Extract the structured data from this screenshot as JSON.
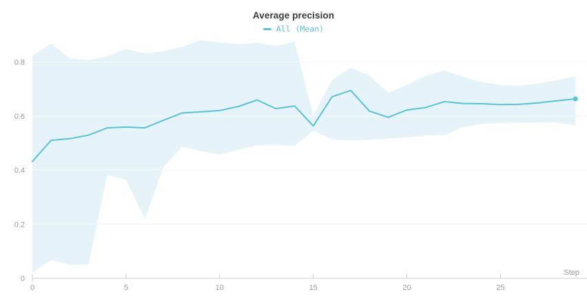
{
  "header": {
    "title": "Average precision"
  },
  "legend": {
    "items": [
      {
        "label": "All (Mean)",
        "color": "#57c2d9"
      }
    ]
  },
  "chart_data": {
    "type": "line",
    "title": "Average precision",
    "xlabel": "Step",
    "ylabel": "",
    "x": [
      0,
      1,
      2,
      3,
      4,
      5,
      6,
      7,
      8,
      9,
      10,
      11,
      12,
      13,
      14,
      15,
      16,
      17,
      18,
      19,
      20,
      21,
      22,
      23,
      24,
      25,
      26,
      27,
      28,
      29
    ],
    "series": [
      {
        "name": "All (Mean)",
        "values": [
          0.432,
          0.51,
          0.516,
          0.529,
          0.556,
          0.559,
          0.556,
          0.584,
          0.611,
          0.615,
          0.62,
          0.635,
          0.659,
          0.627,
          0.637,
          0.563,
          0.671,
          0.694,
          0.618,
          0.595,
          0.622,
          0.631,
          0.653,
          0.646,
          0.645,
          0.642,
          0.643,
          0.648,
          0.656,
          0.663
        ],
        "color": "#57c2d9",
        "endpoint_marker": true
      }
    ],
    "band": {
      "name": "All (Min/Max band)",
      "upper": [
        0.822,
        0.868,
        0.812,
        0.806,
        0.821,
        0.848,
        0.831,
        0.839,
        0.856,
        0.88,
        0.872,
        0.865,
        0.87,
        0.859,
        0.874,
        0.601,
        0.732,
        0.779,
        0.749,
        0.686,
        0.715,
        0.749,
        0.768,
        0.745,
        0.724,
        0.715,
        0.711,
        0.72,
        0.732,
        0.747
      ],
      "lower": [
        0.021,
        0.068,
        0.05,
        0.051,
        0.383,
        0.364,
        0.22,
        0.411,
        0.487,
        0.47,
        0.457,
        0.475,
        0.491,
        0.493,
        0.489,
        0.546,
        0.512,
        0.51,
        0.512,
        0.516,
        0.521,
        0.528,
        0.529,
        0.559,
        0.571,
        0.574,
        0.575,
        0.575,
        0.576,
        0.566
      ],
      "color": "#e6f3f8"
    },
    "x_ticks": [
      "0",
      "5",
      "10",
      "15",
      "20",
      "25"
    ],
    "x_tick_values": [
      0,
      5,
      10,
      15,
      20,
      25
    ],
    "y_ticks": [
      "0",
      "0.2",
      "0.4",
      "0.6",
      "0.8"
    ],
    "y_tick_values": [
      0,
      0.2,
      0.4,
      0.6,
      0.8
    ],
    "xlim": [
      0,
      29.6
    ],
    "ylim": [
      0,
      0.89
    ],
    "grid": "horizontal",
    "legend_position": "top-center",
    "colors": {
      "line": "#57c2d9",
      "band": "#e6f3f8",
      "gridline": "#e2e2e2",
      "axis_line": "#e0e0e0",
      "tick_mark": "#cccccc",
      "tick_label": "#999999",
      "title": "#3a3a3a"
    }
  }
}
